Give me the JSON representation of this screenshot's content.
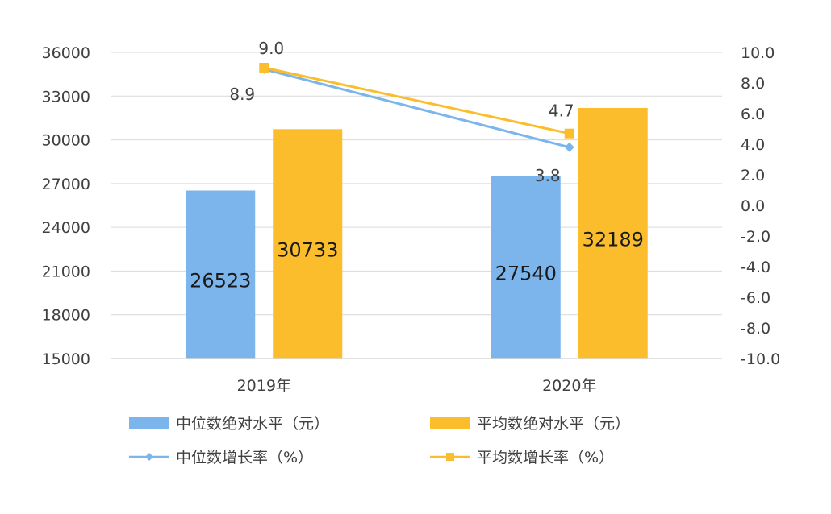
{
  "chart_data": {
    "type": "bar",
    "categories": [
      "2019年",
      "2020年"
    ],
    "y_left": {
      "min": 15000,
      "max": 36000,
      "ticks": [
        "15000",
        "18000",
        "21000",
        "24000",
        "27000",
        "30000",
        "33000",
        "36000"
      ]
    },
    "y_right": {
      "min": -10.0,
      "max": 10.0,
      "ticks": [
        "-10.0",
        "-8.0",
        "-6.0",
        "-4.0",
        "-2.0",
        "0.0",
        "2.0",
        "4.0",
        "6.0",
        "8.0",
        "10.0"
      ]
    },
    "grid": true,
    "legend_position": "bottom",
    "bar_series": [
      {
        "name": "中位数绝对水平（元）",
        "values": [
          26523,
          27540
        ],
        "labels": [
          "26523",
          "27540"
        ],
        "color": "#7cb5ec"
      },
      {
        "name": "平均数绝对水平（元）",
        "values": [
          30733,
          32189
        ],
        "labels": [
          "30733",
          "32189"
        ],
        "color": "#fbbd2b"
      }
    ],
    "line_series": [
      {
        "name": "中位数增长率（%）",
        "values": [
          8.9,
          3.8
        ],
        "labels": [
          "8.9",
          "3.8"
        ],
        "color": "#7cb5ec",
        "marker": "diamond"
      },
      {
        "name": "平均数增长率（%）",
        "values": [
          9.0,
          4.7
        ],
        "labels": [
          "9.0",
          "4.7"
        ],
        "color": "#fbbd2b",
        "marker": "square"
      }
    ]
  }
}
